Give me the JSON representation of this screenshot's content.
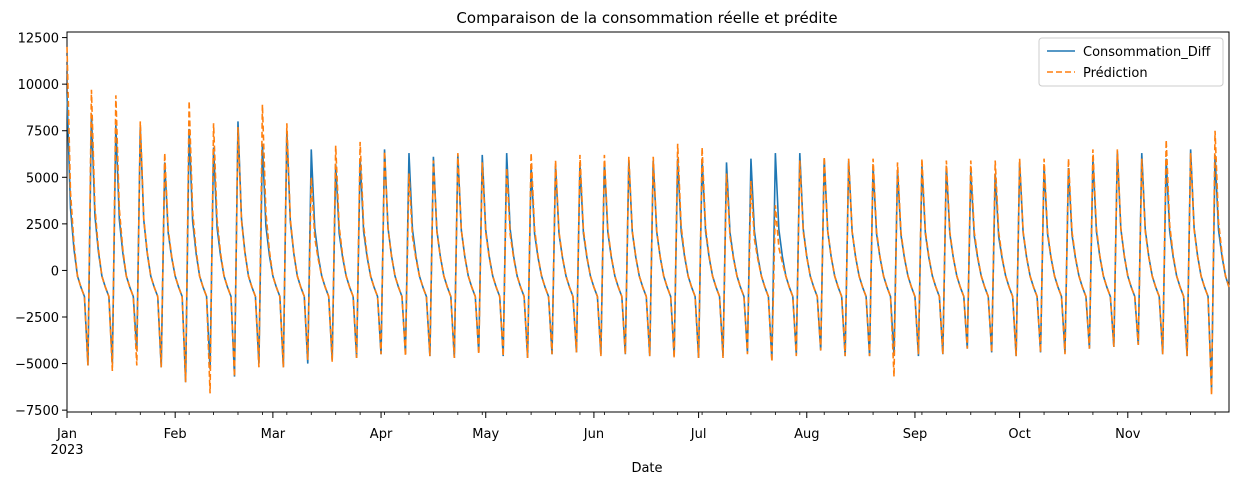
{
  "chart_data": {
    "type": "line",
    "title": "Comparaison de la consommation réelle et prédite",
    "xlabel": "Date",
    "ylabel": "",
    "x_range": [
      "2023-01-01",
      "2023-11-30"
    ],
    "ylim": [
      -7600,
      12800
    ],
    "yticks": [
      -7500,
      -5000,
      -2500,
      0,
      2500,
      5000,
      7500,
      10000,
      12500
    ],
    "ytick_labels": [
      "−7500",
      "−5000",
      "−2500",
      "0",
      "2500",
      "5000",
      "7500",
      "10000",
      "12500"
    ],
    "xticks": [
      {
        "date": "2023-01-01",
        "label": "Jan",
        "sublabel": "2023"
      },
      {
        "date": "2023-02-01",
        "label": "Feb"
      },
      {
        "date": "2023-03-01",
        "label": "Mar"
      },
      {
        "date": "2023-04-01",
        "label": "Apr"
      },
      {
        "date": "2023-05-01",
        "label": "May"
      },
      {
        "date": "2023-06-01",
        "label": "Jun"
      },
      {
        "date": "2023-07-01",
        "label": "Jul"
      },
      {
        "date": "2023-08-01",
        "label": "Aug"
      },
      {
        "date": "2023-09-01",
        "label": "Sep"
      },
      {
        "date": "2023-10-01",
        "label": "Oct"
      },
      {
        "date": "2023-11-01",
        "label": "Nov"
      }
    ],
    "grid": false,
    "legend_position": "top-right",
    "pattern_note_weekly": true,
    "series": [
      {
        "name": "Consommation_Diff",
        "color": "#1f77b4",
        "style": "solid",
        "weekly_peaks": [
          9500,
          8400,
          7800,
          7700,
          5800,
          7600,
          6600,
          8000,
          6800,
          7500,
          6500,
          5700,
          6000,
          6500,
          6300,
          6100,
          6200,
          6200,
          6300,
          5600,
          5600,
          5700,
          5800,
          5900,
          5900,
          6000,
          6000,
          5800,
          6000,
          6300,
          6300,
          6000,
          5900,
          5600,
          5400,
          5600,
          5600,
          5300,
          5200,
          5800,
          5600,
          5500,
          6000,
          6400,
          6300,
          6000,
          6500,
          6200
        ],
        "weekly_troughs": [
          -5100,
          -5000,
          -4300,
          -5200,
          -6000,
          -5300,
          -5700,
          -5000,
          -5200,
          -5000,
          -4800,
          -4700,
          -4500,
          -4500,
          -4600,
          -4700,
          -4400,
          -4600,
          -4700,
          -4500,
          -4400,
          -4500,
          -4500,
          -4600,
          -4600,
          -4700,
          -4600,
          -4400,
          -4800,
          -4500,
          -4300,
          -4600,
          -4600,
          -4600,
          -4600,
          -4500,
          -4200,
          -4400,
          -4600,
          -4400,
          -4400,
          -4200,
          -4100,
          -4000,
          -4500,
          -4600,
          -6400,
          -4300
        ]
      },
      {
        "name": "Prédiction",
        "color": "#ff7f0e",
        "style": "dashed",
        "weekly_peaks": [
          12000,
          9700,
          9400,
          8000,
          6300,
          9100,
          7900,
          7700,
          8900,
          7900,
          5000,
          6700,
          6900,
          6400,
          5200,
          5900,
          6300,
          5800,
          5500,
          6300,
          5900,
          6200,
          6200,
          6100,
          6100,
          6800,
          6600,
          5200,
          4800,
          3500,
          5900,
          6100,
          6000,
          6000,
          5800,
          6000,
          5900,
          5900,
          5900,
          6000,
          6000,
          6000,
          6500,
          6500,
          6000,
          7000,
          6300,
          7500
        ],
        "weekly_troughs": [
          -5100,
          -5400,
          -5100,
          -5200,
          -6000,
          -6600,
          -5700,
          -5200,
          -5200,
          -4800,
          -4900,
          -4700,
          -4500,
          -4600,
          -4600,
          -4700,
          -4500,
          -4600,
          -4700,
          -4500,
          -4400,
          -4600,
          -4500,
          -4600,
          -4700,
          -4700,
          -4700,
          -4500,
          -4900,
          -4600,
          -4300,
          -4600,
          -4600,
          -5700,
          -4500,
          -4500,
          -4200,
          -4400,
          -4600,
          -4400,
          -4500,
          -4200,
          -4100,
          -4000,
          -4500,
          -4600,
          -6700,
          -4300
        ]
      }
    ]
  }
}
